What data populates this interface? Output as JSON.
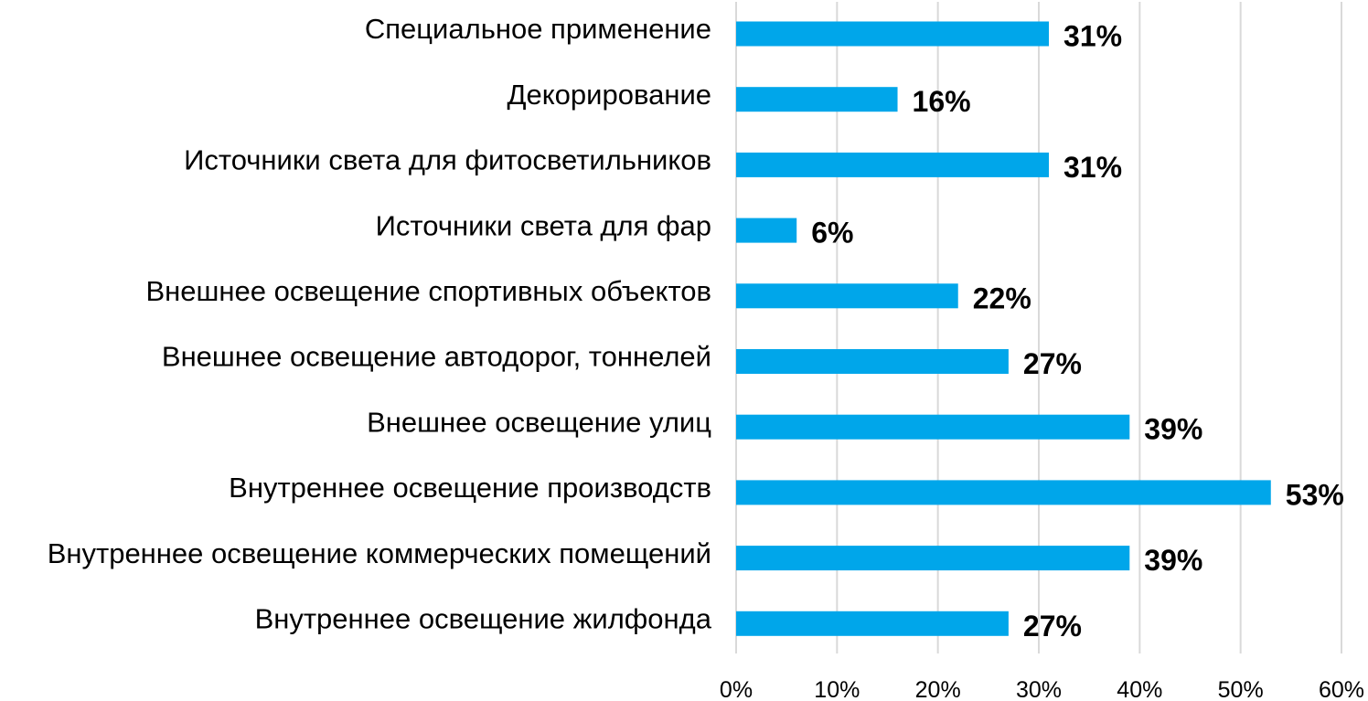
{
  "chart_data": {
    "type": "bar",
    "orientation": "horizontal",
    "categories": [
      "Специальное применение",
      "Декорирование",
      "Источники света для фитосветильников",
      "Источники света для фар",
      "Внешнее освещение спортивных объектов",
      "Внешнее освещение автодорог, тоннелей",
      "Внешнее освещение улиц",
      "Внутреннее освещение производств",
      "Внутреннее освещение коммерческих помещений",
      "Внутреннее освещение жилфонда"
    ],
    "values": [
      31,
      16,
      31,
      6,
      22,
      27,
      39,
      53,
      39,
      27
    ],
    "value_labels": [
      "31%",
      "16%",
      "31%",
      "6%",
      "22%",
      "27%",
      "39%",
      "53%",
      "39%",
      "27%"
    ],
    "xlim": [
      0,
      60
    ],
    "xticks": [
      0,
      10,
      20,
      30,
      40,
      50,
      60
    ],
    "xtick_labels": [
      "0%",
      "10%",
      "20%",
      "30%",
      "40%",
      "50%",
      "60%"
    ],
    "grid": true,
    "legend": "none",
    "bar_color": "#00a6ea",
    "grid_color": "#d9d9d9",
    "title": "",
    "xlabel": "",
    "ylabel": ""
  }
}
